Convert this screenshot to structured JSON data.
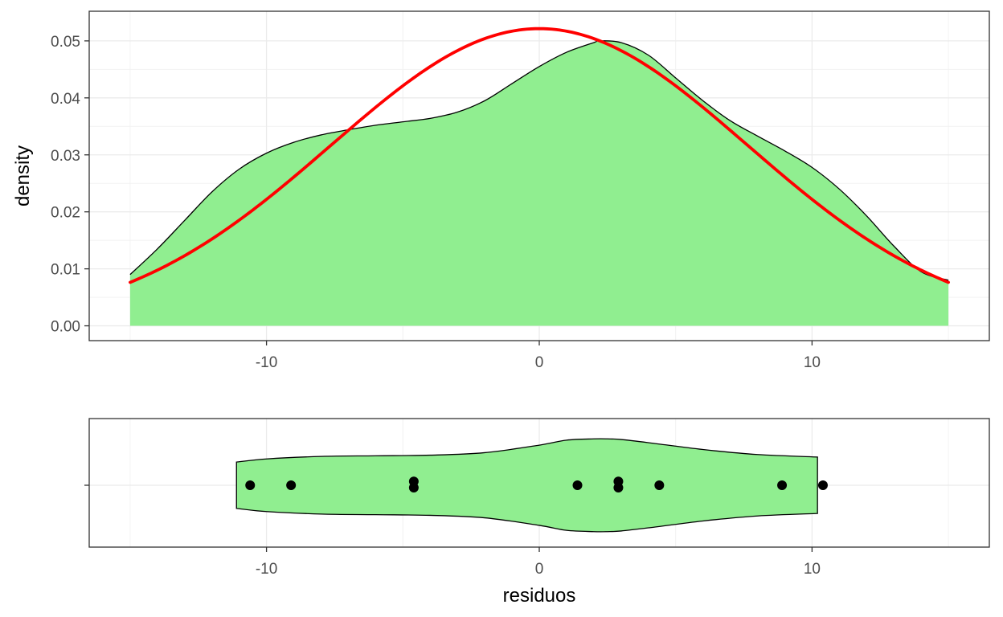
{
  "chart_data": [
    {
      "type": "area",
      "xlabel": "",
      "ylabel": "density",
      "xlim": [
        -16.5,
        16.5
      ],
      "ylim": [
        -0.0026,
        0.0552
      ],
      "x_ticks": [
        -10,
        0,
        10
      ],
      "x_tick_labels": [
        "-10",
        "0",
        "10"
      ],
      "y_ticks": [
        0,
        0.01,
        0.02,
        0.03,
        0.04,
        0.05
      ],
      "y_tick_labels": [
        "0.00",
        "0.01",
        "0.02",
        "0.03",
        "0.04",
        "0.05"
      ],
      "grid": true,
      "series": [
        {
          "kind": "density-area",
          "fill": "#90EE90",
          "stroke": "#000000",
          "x": [
            -15,
            -14,
            -13,
            -12,
            -11,
            -10,
            -9,
            -8,
            -7,
            -6,
            -5,
            -4,
            -3,
            -2,
            -1,
            0,
            1,
            2,
            2.2,
            3,
            4,
            5,
            6,
            7,
            8,
            9,
            10,
            11,
            12,
            13,
            14,
            15
          ],
          "y": [
            0.009,
            0.0135,
            0.0185,
            0.0235,
            0.0275,
            0.0303,
            0.0322,
            0.0335,
            0.0344,
            0.0352,
            0.0358,
            0.0364,
            0.0375,
            0.0395,
            0.0425,
            0.0455,
            0.048,
            0.0497,
            0.05,
            0.0497,
            0.0475,
            0.0435,
            0.0395,
            0.036,
            0.0333,
            0.0307,
            0.0278,
            0.024,
            0.0193,
            0.014,
            0.0095,
            0.008
          ]
        },
        {
          "kind": "normal-curve",
          "stroke": "#FF0000",
          "mean": 0,
          "sd": 7.65,
          "x_range": [
            -15,
            15
          ]
        }
      ]
    },
    {
      "type": "violin",
      "xlabel": "residuos",
      "ylabel": "",
      "xlim": [
        -16.5,
        16.5
      ],
      "x_ticks": [
        -10,
        0,
        10
      ],
      "x_tick_labels": [
        "-10",
        "0",
        "10"
      ],
      "grid": true,
      "violin": {
        "fill": "#90EE90",
        "stroke": "#000000",
        "x": [
          -11.1,
          -10,
          -8,
          -6,
          -4,
          -2,
          0,
          1,
          2,
          2.5,
          3,
          4,
          6,
          8,
          10.2
        ],
        "half_width": [
          0.37,
          0.42,
          0.46,
          0.47,
          0.48,
          0.52,
          0.64,
          0.72,
          0.74,
          0.74,
          0.73,
          0.68,
          0.57,
          0.49,
          0.45
        ]
      },
      "points": {
        "color": "#000000",
        "x": [
          -10.6,
          -9.1,
          -4.6,
          -4.6,
          1.4,
          2.9,
          2.9,
          4.4,
          8.9,
          10.4
        ],
        "jitter": [
          0,
          0,
          0.08,
          -0.05,
          0,
          0.08,
          -0.05,
          0,
          0,
          0
        ]
      }
    }
  ]
}
